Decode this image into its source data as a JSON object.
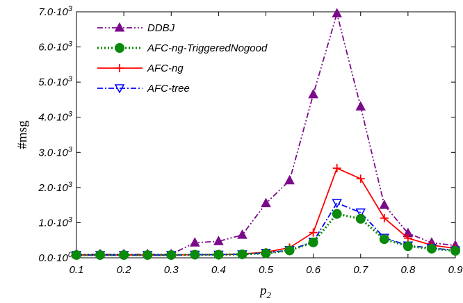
{
  "chart_data": {
    "type": "line",
    "title": "",
    "xlabel_base": "p",
    "xlabel_sub": "2",
    "ylabel": "#msg",
    "xlim": [
      0.1,
      0.9
    ],
    "ylim": [
      0,
      7000
    ],
    "x_ticks": [
      0.1,
      0.2,
      0.3,
      0.4,
      0.5,
      0.6,
      0.7,
      0.8,
      0.9
    ],
    "x_tick_labels": [
      "0.1",
      "0.2",
      "0.3",
      "0.4",
      "0.5",
      "0.6",
      "0.7",
      "0.8",
      "0.9"
    ],
    "y_ticks": [
      0,
      1000,
      2000,
      3000,
      4000,
      5000,
      6000,
      7000
    ],
    "y_tick_labels": [
      "0.0",
      "1.0",
      "2.0",
      "3.0",
      "4.0",
      "5.0",
      "6.0",
      "7.0"
    ],
    "y_tick_multiplier": "·10",
    "y_tick_exponent": "3",
    "y_tick_exponent_zero": "0",
    "grid": false,
    "legend_position": "top-left",
    "x": [
      0.1,
      0.15,
      0.2,
      0.25,
      0.3,
      0.35,
      0.4,
      0.45,
      0.5,
      0.55,
      0.6,
      0.65,
      0.7,
      0.75,
      0.8,
      0.85,
      0.9
    ],
    "series": [
      {
        "name": "DDBJ",
        "color": "#7b0a8a",
        "marker": "triangle-up",
        "dash": "dash-dot-dot",
        "values": [
          100,
          100,
          100,
          100,
          100,
          430,
          470,
          650,
          1550,
          2200,
          4650,
          6950,
          4300,
          1500,
          700,
          430,
          350
        ]
      },
      {
        "name": "AFC-ng-TriggeredNogood",
        "color": "#0b8a0b",
        "marker": "circle",
        "dash": "dotted",
        "values": [
          80,
          80,
          80,
          80,
          80,
          90,
          90,
          100,
          130,
          210,
          440,
          1250,
          1110,
          530,
          330,
          260,
          200
        ]
      },
      {
        "name": "AFC-ng",
        "color": "#ff0000",
        "marker": "plus",
        "dash": "solid",
        "values": [
          80,
          80,
          80,
          80,
          80,
          90,
          90,
          110,
          160,
          290,
          720,
          2550,
          2250,
          1130,
          560,
          360,
          270
        ]
      },
      {
        "name": "AFC-tree",
        "color": "#0000ff",
        "marker": "triangle-down",
        "dash": "dash-dot",
        "values": [
          80,
          80,
          80,
          80,
          80,
          90,
          90,
          100,
          140,
          220,
          460,
          1560,
          1290,
          570,
          350,
          280,
          210
        ]
      }
    ]
  }
}
